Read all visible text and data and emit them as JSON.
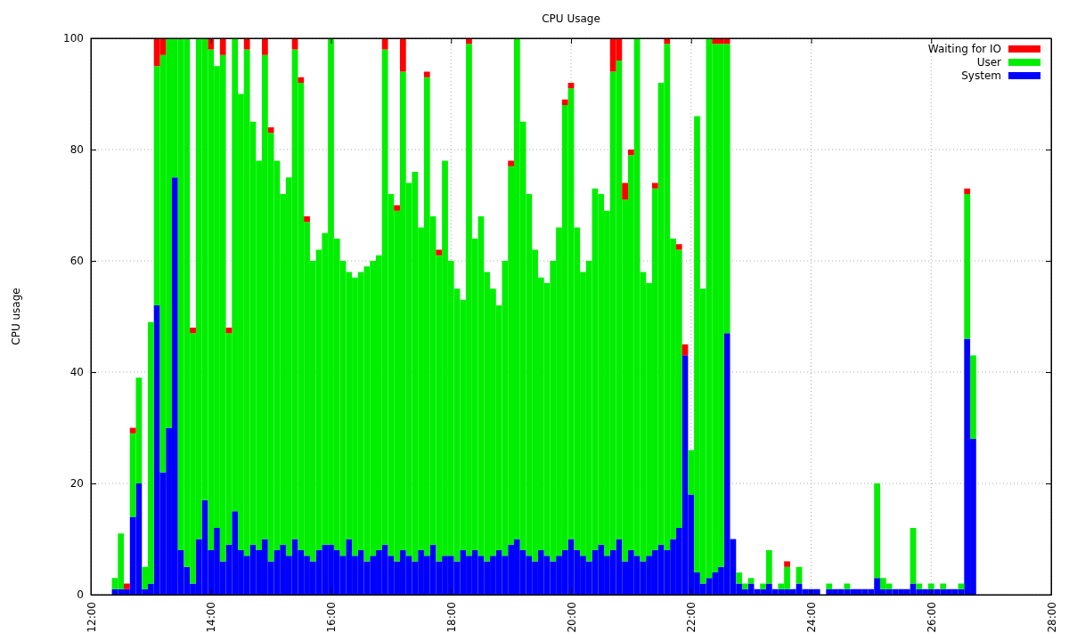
{
  "chart_data": {
    "type": "bar",
    "stacked": true,
    "title": "CPU Usage",
    "ylabel": "CPU usage",
    "x": [
      12.4,
      12.5,
      12.6,
      12.7,
      12.8,
      12.9,
      13.0,
      13.1,
      13.2,
      13.3,
      13.4,
      13.5,
      13.6,
      13.7,
      13.8,
      13.9,
      14.0,
      14.1,
      14.2,
      14.3,
      14.4,
      14.5,
      14.6,
      14.7,
      14.8,
      14.9,
      15.0,
      15.1,
      15.2,
      15.3,
      15.4,
      15.5,
      15.6,
      15.7,
      15.8,
      15.9,
      16.0,
      16.1,
      16.2,
      16.3,
      16.4,
      16.5,
      16.6,
      16.7,
      16.8,
      16.9,
      17.0,
      17.1,
      17.2,
      17.3,
      17.4,
      17.5,
      17.6,
      17.7,
      17.8,
      17.9,
      18.0,
      18.1,
      18.2,
      18.3,
      18.4,
      18.5,
      18.6,
      18.7,
      18.8,
      18.9,
      19.0,
      19.1,
      19.2,
      19.3,
      19.4,
      19.5,
      19.6,
      19.7,
      19.8,
      19.9,
      20.0,
      20.1,
      20.2,
      20.3,
      20.4,
      20.5,
      20.6,
      20.7,
      20.8,
      20.9,
      21.0,
      21.1,
      21.2,
      21.3,
      21.4,
      21.5,
      21.6,
      21.7,
      21.8,
      21.9,
      22.0,
      22.1,
      22.2,
      22.3,
      22.4,
      22.5,
      22.6,
      22.7,
      22.8,
      22.9,
      23.0,
      23.1,
      23.2,
      23.3,
      23.4,
      23.5,
      23.6,
      23.7,
      23.8,
      23.9,
      24.0,
      24.1,
      24.2,
      24.3,
      24.4,
      24.5,
      24.6,
      24.7,
      24.8,
      24.9,
      25.0,
      25.1,
      25.2,
      25.3,
      25.4,
      25.5,
      25.6,
      25.7,
      25.8,
      25.9,
      26.0,
      26.1,
      26.2,
      26.3,
      26.4,
      26.5,
      26.6,
      26.7
    ],
    "series": [
      {
        "name": "System",
        "color": "#0000ff",
        "values": [
          1,
          1,
          1,
          14,
          20,
          1,
          2,
          52,
          22,
          30,
          75,
          8,
          5,
          2,
          10,
          17,
          8,
          12,
          6,
          9,
          15,
          8,
          7,
          9,
          8,
          10,
          6,
          8,
          9,
          7,
          10,
          8,
          7,
          6,
          8,
          9,
          9,
          8,
          7,
          10,
          7,
          8,
          6,
          7,
          8,
          9,
          7,
          6,
          8,
          7,
          6,
          8,
          7,
          9,
          6,
          7,
          7,
          6,
          8,
          7,
          8,
          7,
          6,
          7,
          8,
          7,
          9,
          10,
          8,
          7,
          6,
          8,
          7,
          6,
          7,
          8,
          10,
          8,
          7,
          6,
          8,
          9,
          7,
          8,
          10,
          6,
          8,
          7,
          6,
          7,
          8,
          9,
          8,
          10,
          12,
          43,
          18,
          4,
          2,
          3,
          4,
          5,
          47,
          10,
          2,
          1,
          2,
          1,
          1,
          2,
          1,
          1,
          1,
          1,
          2,
          1,
          1,
          1,
          0,
          1,
          1,
          1,
          1,
          1,
          1,
          1,
          1,
          3,
          1,
          1,
          1,
          1,
          1,
          2,
          1,
          1,
          1,
          1,
          1,
          1,
          1,
          1,
          46,
          28
        ]
      },
      {
        "name": "User",
        "color": "#00ee00",
        "values": [
          2,
          10,
          0,
          15,
          19,
          4,
          47,
          43,
          75,
          70,
          25,
          92,
          95,
          45,
          90,
          83,
          90,
          83,
          91,
          38,
          85,
          82,
          91,
          76,
          70,
          87,
          77,
          70,
          63,
          68,
          88,
          84,
          60,
          54,
          54,
          56,
          91,
          56,
          53,
          48,
          50,
          50,
          53,
          53,
          53,
          89,
          65,
          63,
          86,
          67,
          70,
          58,
          86,
          59,
          55,
          71,
          53,
          49,
          45,
          92,
          56,
          61,
          52,
          48,
          44,
          53,
          68,
          90,
          77,
          65,
          56,
          49,
          49,
          54,
          59,
          80,
          81,
          58,
          51,
          54,
          65,
          63,
          62,
          86,
          86,
          65,
          71,
          93,
          52,
          49,
          65,
          83,
          91,
          54,
          50,
          0,
          8,
          82,
          53,
          97,
          95,
          94,
          52,
          0,
          2,
          1,
          1,
          0,
          1,
          6,
          0,
          1,
          4,
          0,
          3,
          0,
          0,
          0,
          0,
          1,
          0,
          0,
          1,
          0,
          0,
          0,
          0,
          17,
          2,
          1,
          0,
          0,
          0,
          10,
          1,
          0,
          1,
          0,
          1,
          0,
          0,
          1,
          26,
          15
        ]
      },
      {
        "name": "Waiting for IO",
        "color": "#ff0000",
        "values": [
          0,
          0,
          1,
          1,
          0,
          0,
          0,
          5,
          3,
          0,
          0,
          0,
          0,
          1,
          0,
          0,
          2,
          0,
          3,
          1,
          0,
          0,
          2,
          0,
          0,
          3,
          1,
          0,
          0,
          0,
          2,
          1,
          1,
          0,
          0,
          0,
          0,
          0,
          0,
          0,
          0,
          0,
          0,
          0,
          0,
          2,
          0,
          1,
          6,
          0,
          0,
          0,
          1,
          0,
          1,
          0,
          0,
          0,
          0,
          1,
          0,
          0,
          0,
          0,
          0,
          0,
          1,
          0,
          0,
          0,
          0,
          0,
          0,
          0,
          0,
          1,
          1,
          0,
          0,
          0,
          0,
          0,
          0,
          6,
          4,
          3,
          1,
          0,
          0,
          0,
          1,
          0,
          1,
          0,
          1,
          2,
          0,
          0,
          0,
          0,
          1,
          1,
          1,
          0,
          0,
          0,
          0,
          0,
          0,
          0,
          0,
          0,
          1,
          0,
          0,
          0,
          0,
          0,
          0,
          0,
          0,
          0,
          0,
          0,
          0,
          0,
          0,
          0,
          0,
          0,
          0,
          0,
          0,
          0,
          0,
          0,
          0,
          0,
          0,
          0,
          0,
          0,
          1,
          0
        ]
      }
    ],
    "xlim": [
      12,
      28
    ],
    "xticks": [
      {
        "value": 12,
        "label": "12:00"
      },
      {
        "value": 14,
        "label": "14:00"
      },
      {
        "value": 16,
        "label": "16:00"
      },
      {
        "value": 18,
        "label": "18:00"
      },
      {
        "value": 20,
        "label": "20:00"
      },
      {
        "value": 22,
        "label": "22:00"
      },
      {
        "value": 24,
        "label": "24:00"
      },
      {
        "value": 26,
        "label": "26:00"
      },
      {
        "value": 28,
        "label": "28:00"
      }
    ],
    "ylim": [
      0,
      100
    ],
    "yticks": [
      0,
      20,
      40,
      60,
      80,
      100
    ],
    "grid": true,
    "legend": "top right"
  }
}
